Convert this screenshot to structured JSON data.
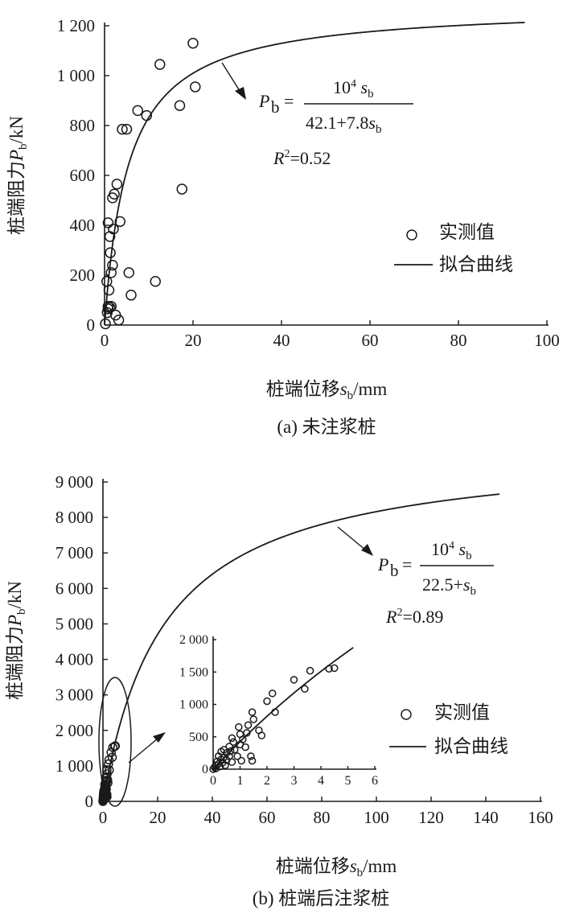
{
  "chart_data": [
    {
      "id": "a",
      "type": "scatter",
      "caption": "(a) 未注浆桩",
      "xlabel": {
        "main": "桩端位移",
        "var": "s",
        "sub": "b",
        "unit": "/mm"
      },
      "ylabel": {
        "main": "桩端阻力",
        "var": "P",
        "sub": "b",
        "unit": "/kN"
      },
      "xlim": [
        0,
        100
      ],
      "ylim": [
        0,
        1200
      ],
      "xticks": [
        0,
        20,
        40,
        60,
        80,
        100
      ],
      "xtick_labels": [
        "0",
        "20",
        "40",
        "60",
        "80",
        "100"
      ],
      "yticks": [
        0,
        200,
        400,
        600,
        800,
        1000,
        1200
      ],
      "ytick_labels": [
        "0",
        "200",
        "400",
        "600",
        "800",
        "1 000",
        "1 200"
      ],
      "legend": {
        "points": "实测值",
        "curve": "拟合曲线"
      },
      "fit": {
        "a": 42.1,
        "b": 7.8,
        "x_end": 95,
        "lhs": "P",
        "lhs_sub": "b",
        "num": "10",
        "num_exp": "4",
        "num_var": "s",
        "num_var_sub": "b",
        "den_text": "42.1+7.8",
        "den_var": "s",
        "den_var_sub": "b",
        "r2_label": "R",
        "r2_exp": "2",
        "r2_value": "=0.52"
      },
      "points": [
        [
          0.2,
          5
        ],
        [
          0.6,
          50
        ],
        [
          0.8,
          65
        ],
        [
          0.8,
          75
        ],
        [
          1.2,
          70
        ],
        [
          1.5,
          75
        ],
        [
          2.5,
          40
        ],
        [
          3.2,
          20
        ],
        [
          0.5,
          175
        ],
        [
          1,
          140
        ],
        [
          1.5,
          210
        ],
        [
          1.8,
          240
        ],
        [
          1.3,
          290
        ],
        [
          1.2,
          355
        ],
        [
          2,
          385
        ],
        [
          0.8,
          410
        ],
        [
          3.5,
          415
        ],
        [
          1.8,
          510
        ],
        [
          2.2,
          525
        ],
        [
          2.8,
          565
        ],
        [
          4,
          785
        ],
        [
          5,
          785
        ],
        [
          7.5,
          860
        ],
        [
          9.5,
          840
        ],
        [
          5.5,
          210
        ],
        [
          6,
          120
        ],
        [
          11.5,
          175
        ],
        [
          17.5,
          545
        ],
        [
          17,
          880
        ],
        [
          12.5,
          1045
        ],
        [
          20,
          1130
        ],
        [
          20.5,
          955
        ]
      ]
    },
    {
      "id": "b",
      "type": "scatter",
      "caption": "(b) 桩端后注浆桩",
      "xlabel": {
        "main": "桩端位移",
        "var": "s",
        "sub": "b",
        "unit": "/mm"
      },
      "ylabel": {
        "main": "桩端阻力",
        "var": "P",
        "sub": "b",
        "unit": "/kN"
      },
      "xlim": [
        0,
        160
      ],
      "ylim": [
        0,
        9000
      ],
      "xticks": [
        0,
        20,
        40,
        60,
        80,
        100,
        120,
        140,
        160
      ],
      "xtick_labels": [
        "0",
        "20",
        "40",
        "60",
        "80",
        "100",
        "120",
        "140",
        "160"
      ],
      "yticks": [
        0,
        1000,
        2000,
        3000,
        4000,
        5000,
        6000,
        7000,
        8000,
        9000
      ],
      "ytick_labels": [
        "0",
        "1 000",
        "2 000",
        "3 000",
        "4 000",
        "5 000",
        "6 000",
        "7 000",
        "8 000",
        "9 000"
      ],
      "legend": {
        "points": "实测值",
        "curve": "拟合曲线"
      },
      "fit": {
        "a": 22.5,
        "b": 1,
        "x_end": 145,
        "lhs": "P",
        "lhs_sub": "b",
        "num": "10",
        "num_exp": "4",
        "num_var": "s",
        "num_var_sub": "b",
        "den_text": "22.5+",
        "den_var": "s",
        "den_var_sub": "b",
        "r2_label": "R",
        "r2_exp": "2",
        "r2_value": "=0.89"
      },
      "inset": {
        "xlim": [
          0,
          6
        ],
        "ylim": [
          0,
          2000
        ],
        "xticks": [
          0,
          1,
          2,
          3,
          4,
          5,
          6
        ],
        "xtick_labels": [
          "0",
          "1",
          "2",
          "3",
          "4",
          "5",
          "6"
        ],
        "yticks": [
          0,
          500,
          1000,
          1500,
          2000
        ],
        "ytick_labels": [
          "0",
          "500",
          "1 000",
          "1 500",
          "2 000"
        ],
        "x_end": 5.2
      },
      "points": [
        [
          0,
          0
        ],
        [
          0.05,
          30
        ],
        [
          0.1,
          60
        ],
        [
          0.1,
          10
        ],
        [
          0.15,
          120
        ],
        [
          0.2,
          80
        ],
        [
          0.2,
          200
        ],
        [
          0.25,
          40
        ],
        [
          0.3,
          150
        ],
        [
          0.3,
          270
        ],
        [
          0.35,
          100
        ],
        [
          0.4,
          180
        ],
        [
          0.4,
          300
        ],
        [
          0.45,
          60
        ],
        [
          0.5,
          250
        ],
        [
          0.5,
          140
        ],
        [
          0.6,
          350
        ],
        [
          0.6,
          200
        ],
        [
          0.65,
          280
        ],
        [
          0.7,
          480
        ],
        [
          0.7,
          110
        ],
        [
          0.75,
          420
        ],
        [
          0.8,
          300
        ],
        [
          0.9,
          200
        ],
        [
          0.95,
          650
        ],
        [
          1,
          380
        ],
        [
          1,
          540
        ],
        [
          1.05,
          130
        ],
        [
          1.1,
          460
        ],
        [
          1.2,
          340
        ],
        [
          1.25,
          560
        ],
        [
          1.3,
          680
        ],
        [
          1.4,
          200
        ],
        [
          1.45,
          880
        ],
        [
          1.45,
          130
        ],
        [
          1.5,
          770
        ],
        [
          1.7,
          600
        ],
        [
          1.8,
          520
        ],
        [
          2,
          1050
        ],
        [
          2.2,
          1170
        ],
        [
          2.3,
          880
        ],
        [
          3,
          1380
        ],
        [
          3.4,
          1240
        ],
        [
          3.6,
          1520
        ],
        [
          4.3,
          1550
        ],
        [
          4.5,
          1560
        ]
      ]
    }
  ]
}
